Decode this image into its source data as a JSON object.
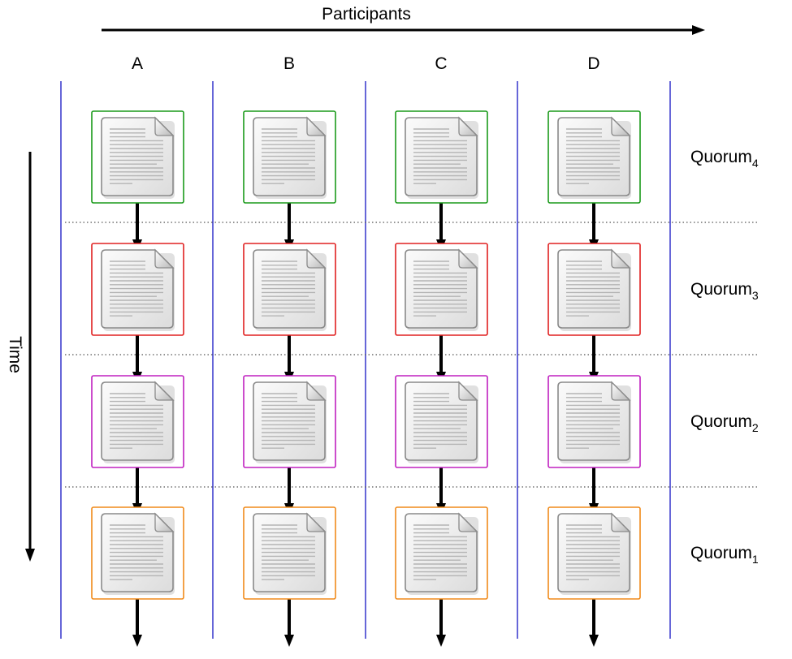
{
  "header": {
    "participants_label": "Participants",
    "time_label": "Time"
  },
  "participants": [
    "A",
    "B",
    "C",
    "D"
  ],
  "quorums": [
    {
      "name": "Quorum",
      "sub": "4",
      "color": "#1a9a1a"
    },
    {
      "name": "Quorum",
      "sub": "3",
      "color": "#e02020"
    },
    {
      "name": "Quorum",
      "sub": "2",
      "color": "#c020c0"
    },
    {
      "name": "Quorum",
      "sub": "1",
      "color": "#f08a1a"
    }
  ],
  "colors": {
    "column_divider": "#3333cc",
    "row_separator": "#555555",
    "arrow": "#000000"
  },
  "icon": "document-icon"
}
